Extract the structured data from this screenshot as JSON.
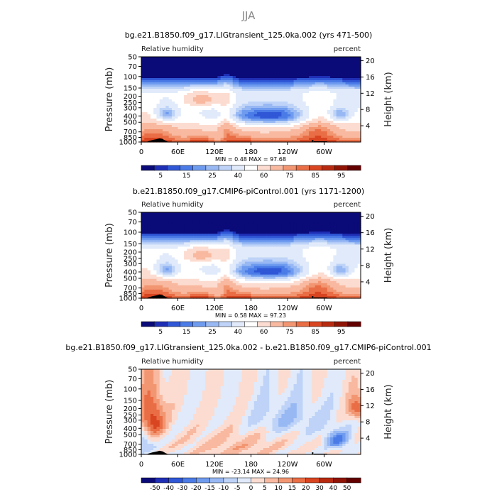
{
  "figure_title": "JJA",
  "chart_data": [
    {
      "type": "heatmap",
      "title": "bg.e21.B1850.f09_g17.LIGtransient_125.0ka.002 (yrs 471-500)",
      "variable_label": "Relative humidity",
      "units_label": "percent",
      "ylabel": "Pressure (mb)",
      "y2label": "Height (km)",
      "x_ticks": [
        "0",
        "60E",
        "120E",
        "180",
        "120W",
        "60W"
      ],
      "x_tick_values": [
        0,
        60,
        120,
        180,
        240,
        300
      ],
      "xlim": [
        0,
        360
      ],
      "y_ticks": [
        "50",
        "70",
        "100",
        "150",
        "200",
        "250",
        "300",
        "400",
        "500",
        "700",
        "850",
        "1000"
      ],
      "y_tick_values": [
        50,
        70,
        100,
        150,
        200,
        250,
        300,
        400,
        500,
        700,
        850,
        1000
      ],
      "ylim": [
        1000,
        50
      ],
      "y2_ticks": [
        "20",
        "16",
        "12",
        "8",
        "4"
      ],
      "y2_tick_values": [
        20,
        16,
        12,
        8,
        4
      ],
      "stats_text": "MIN =    0.48   MAX =   97.68",
      "colorbar_labels": [
        "5",
        "15",
        "25",
        "40",
        "60",
        "75",
        "85",
        "95"
      ],
      "colorbar_levels": [
        3,
        5,
        10,
        15,
        20,
        25,
        30,
        40,
        50,
        60,
        70,
        75,
        80,
        85,
        90,
        95
      ],
      "colorbar_colors": [
        "#0a0a78",
        "#1f2fb5",
        "#2f57d6",
        "#4b7be6",
        "#6f9bef",
        "#97b8f3",
        "#bed3f7",
        "#e0eafa",
        "#ffffff",
        "#fcdcd0",
        "#f8b9a0",
        "#f29672",
        "#e96d45",
        "#d84520",
        "#b82a10",
        "#8f1406",
        "#630000"
      ],
      "scheme": "base"
    },
    {
      "type": "heatmap",
      "title": "b.e21.B1850.f09_g17.CMIP6-piControl.001 (yrs 1171-1200)",
      "variable_label": "Relative humidity",
      "units_label": "percent",
      "ylabel": "Pressure (mb)",
      "y2label": "Height (km)",
      "x_ticks": [
        "0",
        "60E",
        "120E",
        "180",
        "120W",
        "60W"
      ],
      "x_tick_values": [
        0,
        60,
        120,
        180,
        240,
        300
      ],
      "xlim": [
        0,
        360
      ],
      "y_ticks": [
        "50",
        "70",
        "100",
        "150",
        "200",
        "250",
        "300",
        "400",
        "500",
        "700",
        "850",
        "1000"
      ],
      "y_tick_values": [
        50,
        70,
        100,
        150,
        200,
        250,
        300,
        400,
        500,
        700,
        850,
        1000
      ],
      "ylim": [
        1000,
        50
      ],
      "y2_ticks": [
        "20",
        "16",
        "12",
        "8",
        "4"
      ],
      "y2_tick_values": [
        20,
        16,
        12,
        8,
        4
      ],
      "stats_text": "MIN =    0.58   MAX =   97.23",
      "colorbar_labels": [
        "5",
        "15",
        "25",
        "40",
        "60",
        "75",
        "85",
        "95"
      ],
      "colorbar_levels": [
        3,
        5,
        10,
        15,
        20,
        25,
        30,
        40,
        50,
        60,
        70,
        75,
        80,
        85,
        90,
        95
      ],
      "colorbar_colors": [
        "#0a0a78",
        "#1f2fb5",
        "#2f57d6",
        "#4b7be6",
        "#6f9bef",
        "#97b8f3",
        "#bed3f7",
        "#e0eafa",
        "#ffffff",
        "#fcdcd0",
        "#f8b9a0",
        "#f29672",
        "#e96d45",
        "#d84520",
        "#b82a10",
        "#8f1406",
        "#630000"
      ],
      "scheme": "base"
    },
    {
      "type": "heatmap",
      "title": "bg.e21.B1850.f09_g17.LIGtransient_125.0ka.002 - b.e21.B1850.f09_g17.CMIP6-piControl.001",
      "variable_label": "Relative humidity",
      "units_label": "percent",
      "ylabel": "Pressure (mb)",
      "y2label": "Height (km)",
      "x_ticks": [
        "0",
        "60E",
        "120E",
        "180",
        "120W",
        "60W"
      ],
      "x_tick_values": [
        0,
        60,
        120,
        180,
        240,
        300
      ],
      "xlim": [
        0,
        360
      ],
      "y_ticks": [
        "50",
        "70",
        "100",
        "150",
        "200",
        "250",
        "300",
        "400",
        "500",
        "700",
        "850",
        "1000"
      ],
      "y_tick_values": [
        50,
        70,
        100,
        150,
        200,
        250,
        300,
        400,
        500,
        700,
        850,
        1000
      ],
      "ylim": [
        1000,
        50
      ],
      "y2_ticks": [
        "20",
        "16",
        "12",
        "8",
        "4"
      ],
      "y2_tick_values": [
        20,
        16,
        12,
        8,
        4
      ],
      "stats_text": "MIN =  -23.14   MAX =   24.96",
      "colorbar_labels": [
        "-50",
        "-40",
        "-30",
        "-20",
        "-15",
        "-10",
        "-5",
        "0",
        "5",
        "10",
        "15",
        "20",
        "30",
        "40",
        "50"
      ],
      "colorbar_levels": [
        -50,
        -40,
        -30,
        -20,
        -15,
        -10,
        -5,
        0,
        5,
        10,
        15,
        20,
        30,
        40,
        50
      ],
      "colorbar_colors": [
        "#0a0a78",
        "#1f2fb5",
        "#2f57d6",
        "#4b7be6",
        "#6f9bef",
        "#97b8f3",
        "#bed3f7",
        "#e0eafa",
        "#fcdcd0",
        "#f8b9a0",
        "#f29672",
        "#e96d45",
        "#d84520",
        "#b82a10",
        "#8f1406",
        "#630000"
      ],
      "scheme": "diff"
    }
  ]
}
